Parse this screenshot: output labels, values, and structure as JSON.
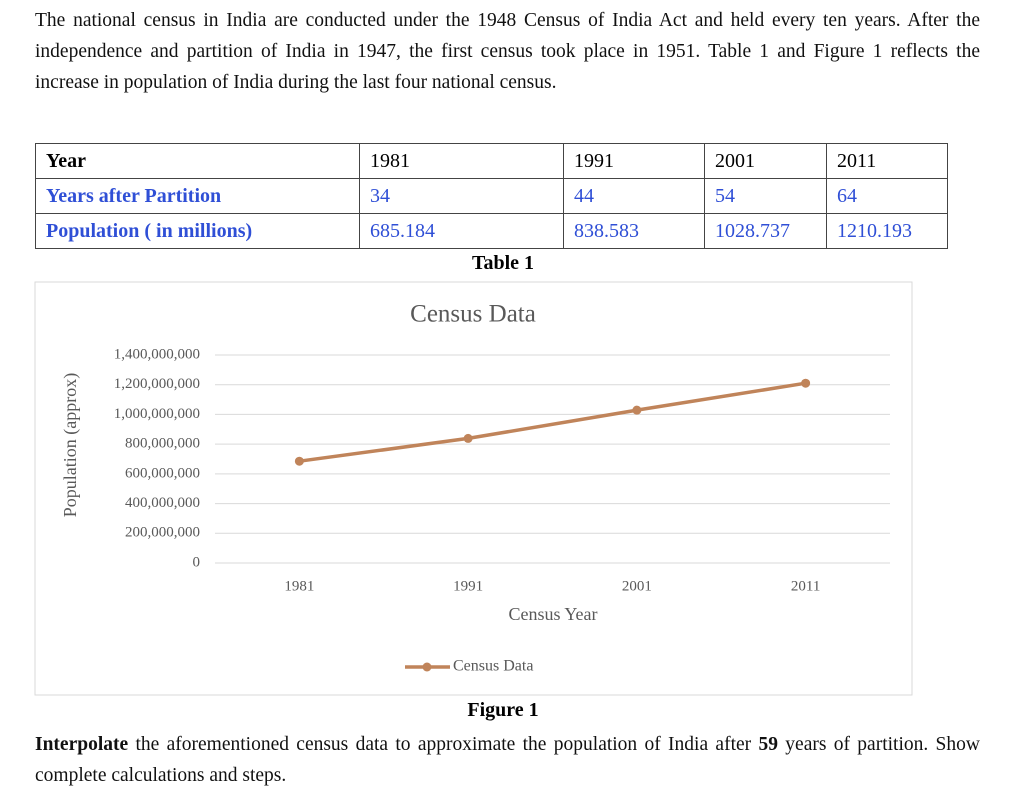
{
  "intro": "The national census in India are conducted under the 1948 Census of India Act and held every ten years. After the independence and partition of India in 1947, the first census took place in 1951. Table 1 and Figure 1 reflects the increase in population of India during the last four national census.",
  "table": {
    "rows": [
      [
        "Year",
        "1981",
        "1991",
        "2001",
        "2011"
      ],
      [
        "Years after Partition",
        "34",
        "44",
        "54",
        "64"
      ],
      [
        "Population ( in millions)",
        "685.184",
        "838.583",
        "1028.737",
        "1210.193"
      ]
    ],
    "caption": "Table 1"
  },
  "chart_data": {
    "type": "line",
    "title": "Census Data",
    "x_label": "Census Year",
    "y_label": "Population (approx)",
    "categories": [
      "1981",
      "1991",
      "2001",
      "2011"
    ],
    "series": [
      {
        "name": "Census Data",
        "color": "#c0845a",
        "values": [
          685184000,
          838583000,
          1028737000,
          1210193000
        ]
      }
    ],
    "ylim": [
      0,
      1400000000
    ],
    "yticks": [
      0,
      {
        "value": 200000000,
        "label": "200,000,000"
      },
      {
        "value": 400000000,
        "label": "400,000,000"
      },
      {
        "value": 600000000,
        "label": "600,000,000"
      },
      {
        "value": 800000000,
        "label": "800,000,000"
      },
      {
        "value": 1000000000,
        "label": "1,000,000,000"
      },
      {
        "value": 1200000000,
        "label": "1,200,000,000"
      },
      {
        "value": 1400000000,
        "label": "1,400,000,000"
      }
    ],
    "grid": true,
    "legend": "bottom"
  },
  "figure_caption": "Figure 1",
  "question": [
    "Interpolate",
    " the aforementioned census data to approximate the population of India after ",
    "59",
    " years of partition. Show complete calculations and steps."
  ]
}
